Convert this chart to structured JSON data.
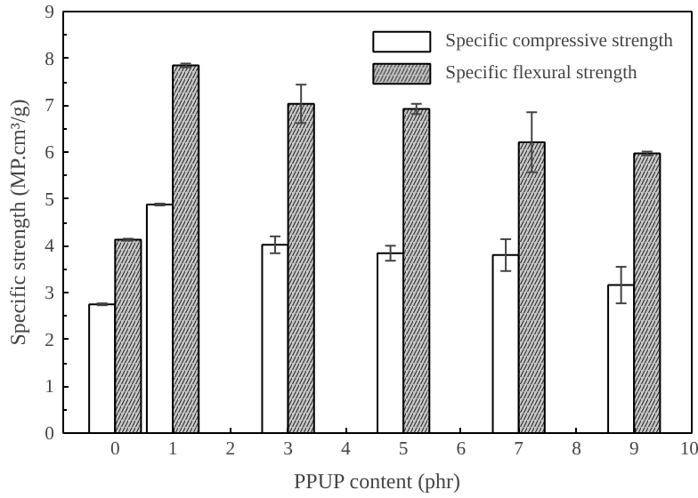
{
  "chart_data": {
    "type": "bar",
    "xlabel": "PPUP content (phr)",
    "ylabel": "Specific strength (MP.cm³/g)",
    "x": [
      0,
      1,
      3,
      5,
      7,
      9
    ],
    "series": [
      {
        "name": "Specific compressive strength",
        "color": "#ffffff",
        "values": [
          2.75,
          4.88,
          4.02,
          3.84,
          3.8,
          3.16
        ],
        "errors": [
          0.02,
          0.02,
          0.18,
          0.16,
          0.34,
          0.39
        ]
      },
      {
        "name": "Specific flexural strength",
        "color": "#c8c8c8",
        "values": [
          4.13,
          7.85,
          7.03,
          6.92,
          6.21,
          5.97
        ],
        "errors": [
          0.02,
          0.04,
          0.41,
          0.11,
          0.64,
          0.04
        ]
      }
    ],
    "xlim": [
      -0.9,
      10
    ],
    "xticks": [
      0,
      1,
      2,
      3,
      4,
      5,
      6,
      7,
      8,
      9,
      10
    ],
    "ylim": [
      0,
      9
    ],
    "yticks": [
      0,
      1,
      2,
      3,
      4,
      5,
      6,
      7,
      8,
      9
    ],
    "grid": false,
    "legend": "top right"
  }
}
